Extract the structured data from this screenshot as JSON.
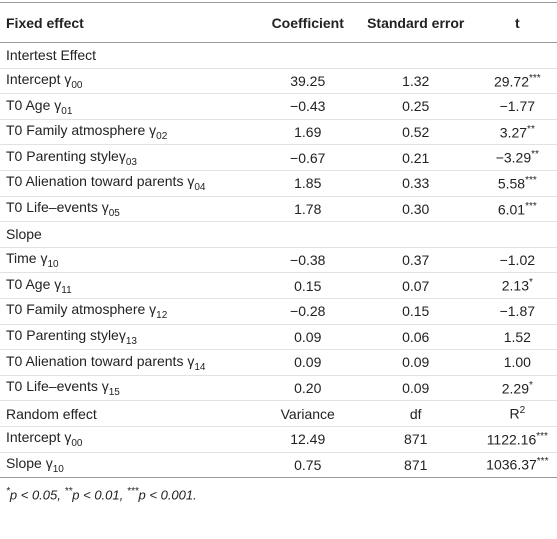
{
  "table": {
    "header": [
      "Fixed effect",
      "Coefficient",
      "Standard error",
      "t"
    ],
    "rows": [
      [
        "Intertest Effect"
      ],
      [
        {
          "text": "Intercept γ",
          "sub": "00"
        },
        "39.25",
        "1.32",
        {
          "text": "29.72",
          "sup": "***"
        }
      ],
      [
        {
          "text": "T0 Age γ",
          "sub": "01"
        },
        "−0.43",
        "0.25",
        "−1.77"
      ],
      [
        {
          "text": "T0 Family atmosphere γ",
          "sub": "02"
        },
        "1.69",
        "0.52",
        {
          "text": "3.27",
          "sup": "**"
        }
      ],
      [
        {
          "text": "T0 Parenting styleγ",
          "sub": "03"
        },
        "−0.67",
        "0.21",
        {
          "text": "−3.29",
          "sup": "**"
        }
      ],
      [
        {
          "text": "T0 Alienation toward parents γ",
          "sub": "04"
        },
        "1.85",
        "0.33",
        {
          "text": "5.58",
          "sup": "***"
        }
      ],
      [
        {
          "text": "T0 Life–events γ",
          "sub": "05"
        },
        "1.78",
        "0.30",
        {
          "text": "6.01",
          "sup": "***"
        }
      ],
      [
        "Slope"
      ],
      [
        {
          "text": "Time γ",
          "sub": "10"
        },
        "−0.38",
        "0.37",
        "−1.02"
      ],
      [
        {
          "text": "T0 Age γ",
          "sub": "11"
        },
        "0.15",
        "0.07",
        {
          "text": "2.13",
          "sup": "*"
        }
      ],
      [
        {
          "text": "T0 Family atmosphere γ",
          "sub": "12"
        },
        "−0.28",
        "0.15",
        "−1.87"
      ],
      [
        {
          "text": "T0 Parenting styleγ",
          "sub": "13"
        },
        "0.09",
        "0.06",
        "1.52"
      ],
      [
        {
          "text": "T0 Alienation toward parents γ",
          "sub": "14"
        },
        "0.09",
        "0.09",
        "1.00"
      ],
      [
        {
          "text": "T0 Life–events γ",
          "sub": "15"
        },
        "0.20",
        "0.09",
        {
          "text": "2.29",
          "sup": "*"
        }
      ],
      [
        "Random effect",
        "Variance",
        "df",
        {
          "text": "R",
          "sup": "2"
        }
      ],
      [
        {
          "text": "Intercept γ",
          "sub": "00"
        },
        "12.49",
        "871",
        {
          "text": "1122.16",
          "sup": "***"
        }
      ],
      [
        {
          "text": "Slope γ",
          "sub": "10"
        },
        "0.75",
        "871",
        {
          "text": "1036.37",
          "sup": "***"
        }
      ]
    ],
    "footnote": [
      {
        "sup": "*",
        "text": "p < 0.05, "
      },
      {
        "sup": "**",
        "text": "p < 0.01, "
      },
      {
        "sup": "***",
        "text": "p < 0.001."
      }
    ]
  }
}
